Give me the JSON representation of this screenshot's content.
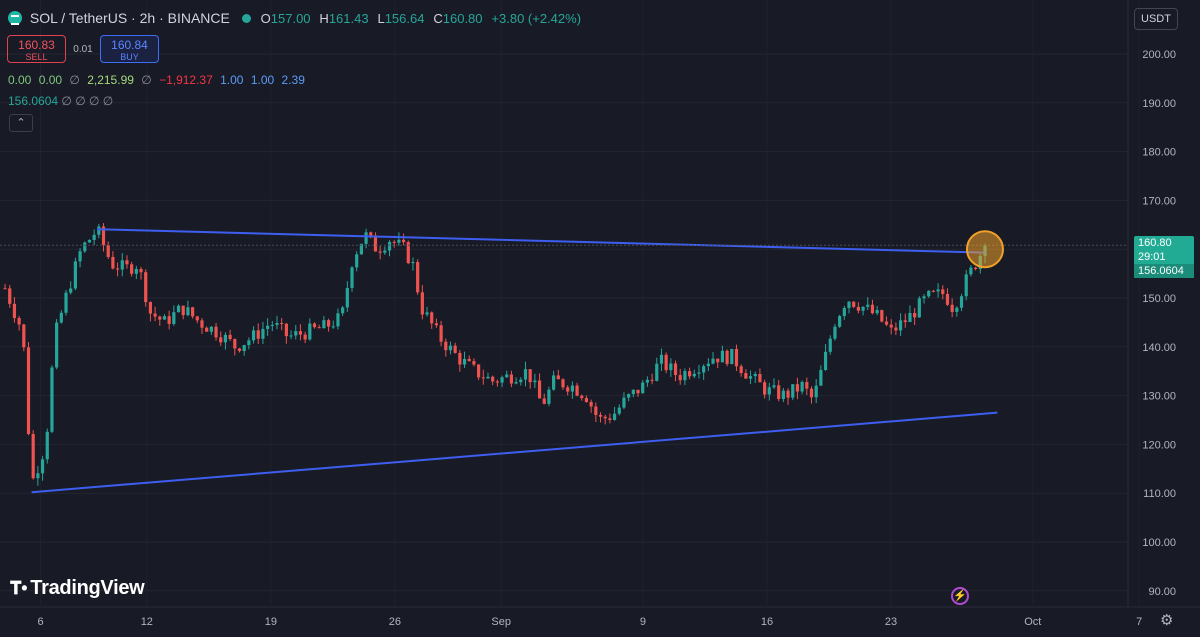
{
  "legend": {
    "title": "SOL / TetherUS · 2h · BINANCE",
    "open_label": "O",
    "open": "157.00",
    "high_label": "H",
    "high": "161.43",
    "low_label": "L",
    "low": "156.64",
    "close_label": "C",
    "close": "160.80",
    "change": "+3.80 (+2.42%)"
  },
  "trade": {
    "sell_price": "160.83",
    "sell_label": "SELL",
    "spread": "0.01",
    "buy_price": "160.84",
    "buy_label": "BUY"
  },
  "indicator_row_1": [
    "0.00",
    "0.00",
    "∅",
    "2,215.99",
    "∅",
    "−1,912.37",
    "1.00",
    "1.00",
    "2.39"
  ],
  "indicator_row_2": {
    "value": "156.0604",
    "symbols": "∅ ∅ ∅ ∅"
  },
  "collapse_icon": "chevron-up-icon",
  "currency_button": "USDT",
  "price_tag": {
    "price": "160.80",
    "countdown": "29:01",
    "indicator": "156.0604"
  },
  "brand": "TradingView",
  "colors": {
    "up": "#26a69a",
    "down": "#ef5350",
    "trendline": "#3d5ef0",
    "highlight": "#f0a12a",
    "background": "#181a25"
  },
  "chart_data": {
    "type": "candlestick",
    "symbol": "SOL / TetherUS",
    "interval": "2h",
    "y_ticks": [
      200,
      190,
      180,
      170,
      160,
      150,
      140,
      130,
      120,
      110,
      100,
      90
    ],
    "y_tick_labels": [
      "200.00",
      "190.00",
      "180.00",
      "170.00",
      "160.00",
      "150.00",
      "140.00",
      "130.00",
      "120.00",
      "110.00",
      "100.00",
      "90.00"
    ],
    "ylim": [
      87,
      210
    ],
    "x_ticks": [
      {
        "label": "6",
        "day": 6
      },
      {
        "label": "12",
        "day": 12
      },
      {
        "label": "19",
        "day": 19
      },
      {
        "label": "26",
        "day": 26
      },
      {
        "label": "Sep",
        "day": 32
      },
      {
        "label": "9",
        "day": 40
      },
      {
        "label": "16",
        "day": 47
      },
      {
        "label": "23",
        "day": 54
      },
      {
        "label": "Oct",
        "day": 62
      },
      {
        "label": "7",
        "day": 68
      }
    ],
    "xlim": [
      4,
      70
    ],
    "price_path": [
      [
        4.0,
        152
      ],
      [
        5.0,
        143
      ],
      [
        5.5,
        112
      ],
      [
        6.3,
        120
      ],
      [
        6.8,
        142
      ],
      [
        7.5,
        151
      ],
      [
        8.3,
        160
      ],
      [
        9.2,
        164
      ],
      [
        10.0,
        157
      ],
      [
        10.8,
        156
      ],
      [
        11.5,
        157
      ],
      [
        12.2,
        147
      ],
      [
        13.0,
        145
      ],
      [
        14.0,
        148
      ],
      [
        15.0,
        145
      ],
      [
        16.0,
        143
      ],
      [
        17.0,
        140
      ],
      [
        18.0,
        142
      ],
      [
        19.0,
        145
      ],
      [
        20.0,
        142
      ],
      [
        21.0,
        143
      ],
      [
        22.0,
        144
      ],
      [
        23.0,
        146
      ],
      [
        23.6,
        158
      ],
      [
        24.3,
        163
      ],
      [
        25.0,
        160
      ],
      [
        25.7,
        162
      ],
      [
        26.5,
        160
      ],
      [
        27.0,
        157
      ],
      [
        27.5,
        148
      ],
      [
        28.5,
        142
      ],
      [
        29.5,
        138
      ],
      [
        30.5,
        135
      ],
      [
        31.5,
        133
      ],
      [
        32.5,
        134
      ],
      [
        33.5,
        135
      ],
      [
        34.3,
        128
      ],
      [
        35.0,
        133
      ],
      [
        36.0,
        132
      ],
      [
        36.8,
        130
      ],
      [
        37.5,
        125
      ],
      [
        38.3,
        126
      ],
      [
        39.0,
        129
      ],
      [
        40.0,
        132
      ],
      [
        41.0,
        137
      ],
      [
        42.0,
        134
      ],
      [
        43.0,
        136
      ],
      [
        44.0,
        138
      ],
      [
        45.0,
        138
      ],
      [
        46.0,
        134
      ],
      [
        47.0,
        131
      ],
      [
        48.0,
        130
      ],
      [
        49.0,
        132
      ],
      [
        49.6,
        129
      ],
      [
        50.3,
        138
      ],
      [
        50.8,
        145
      ],
      [
        51.5,
        150
      ],
      [
        52.5,
        148
      ],
      [
        53.3,
        146
      ],
      [
        54.0,
        143
      ],
      [
        55.0,
        146
      ],
      [
        56.0,
        150
      ],
      [
        57.0,
        151
      ],
      [
        57.5,
        148
      ],
      [
        58.3,
        154
      ],
      [
        58.9,
        158
      ],
      [
        59.3,
        160.8
      ]
    ],
    "candle_count": 210,
    "current_price": 160.8,
    "trendlines": [
      {
        "from": {
          "day": 9.2,
          "price": 164.1
        },
        "to": {
          "day": 59.3,
          "price": 159.3
        }
      },
      {
        "from": {
          "day": 5.5,
          "price": 110.2
        },
        "to": {
          "day": 60.0,
          "price": 126.5
        }
      }
    ],
    "highlight_circle": {
      "day": 59.3,
      "price": 160
    }
  }
}
